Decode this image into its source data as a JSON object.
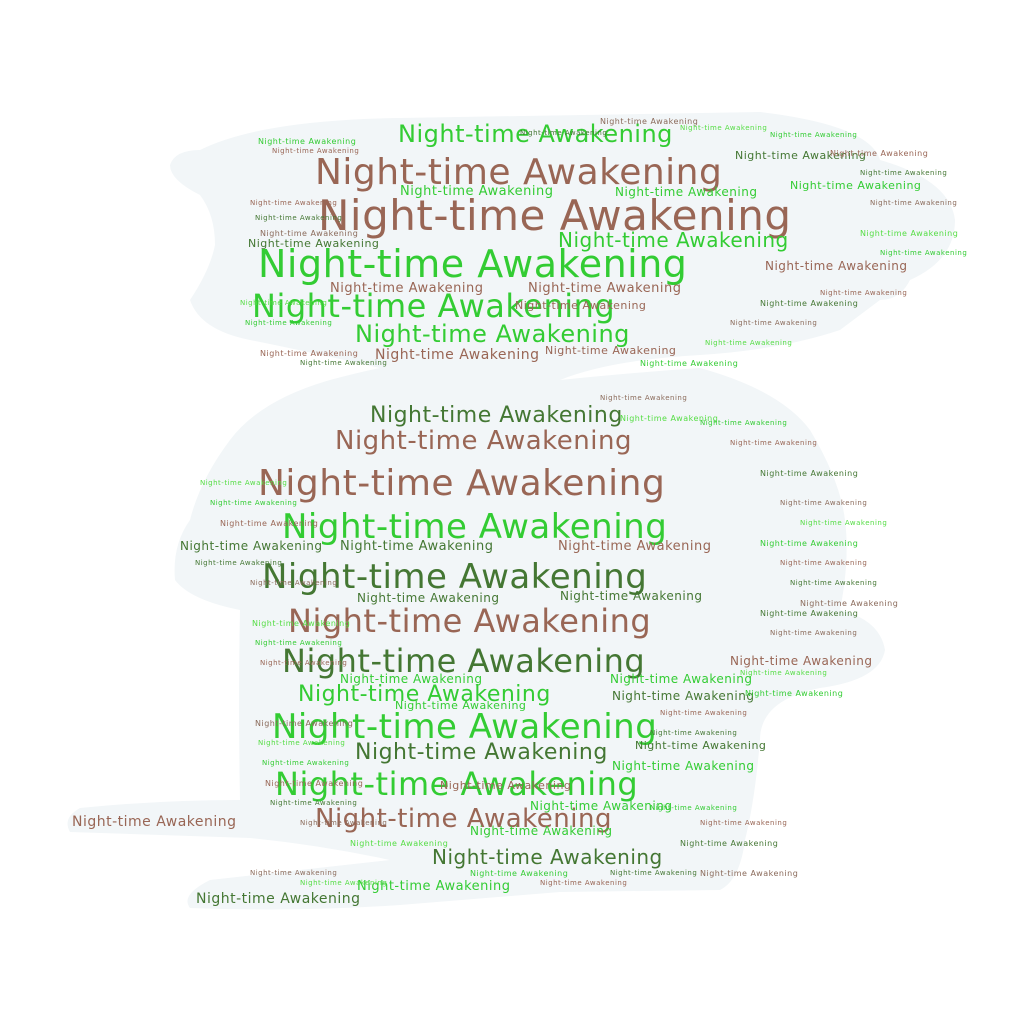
{
  "phrase": "Night-time Awakening",
  "colors": {
    "background": "#ffffff",
    "silhouette": "#f2f6f8",
    "palette": [
      "#33cc33",
      "#996655",
      "#447733",
      "#8a6a5a",
      "#55dd44"
    ]
  }
}
